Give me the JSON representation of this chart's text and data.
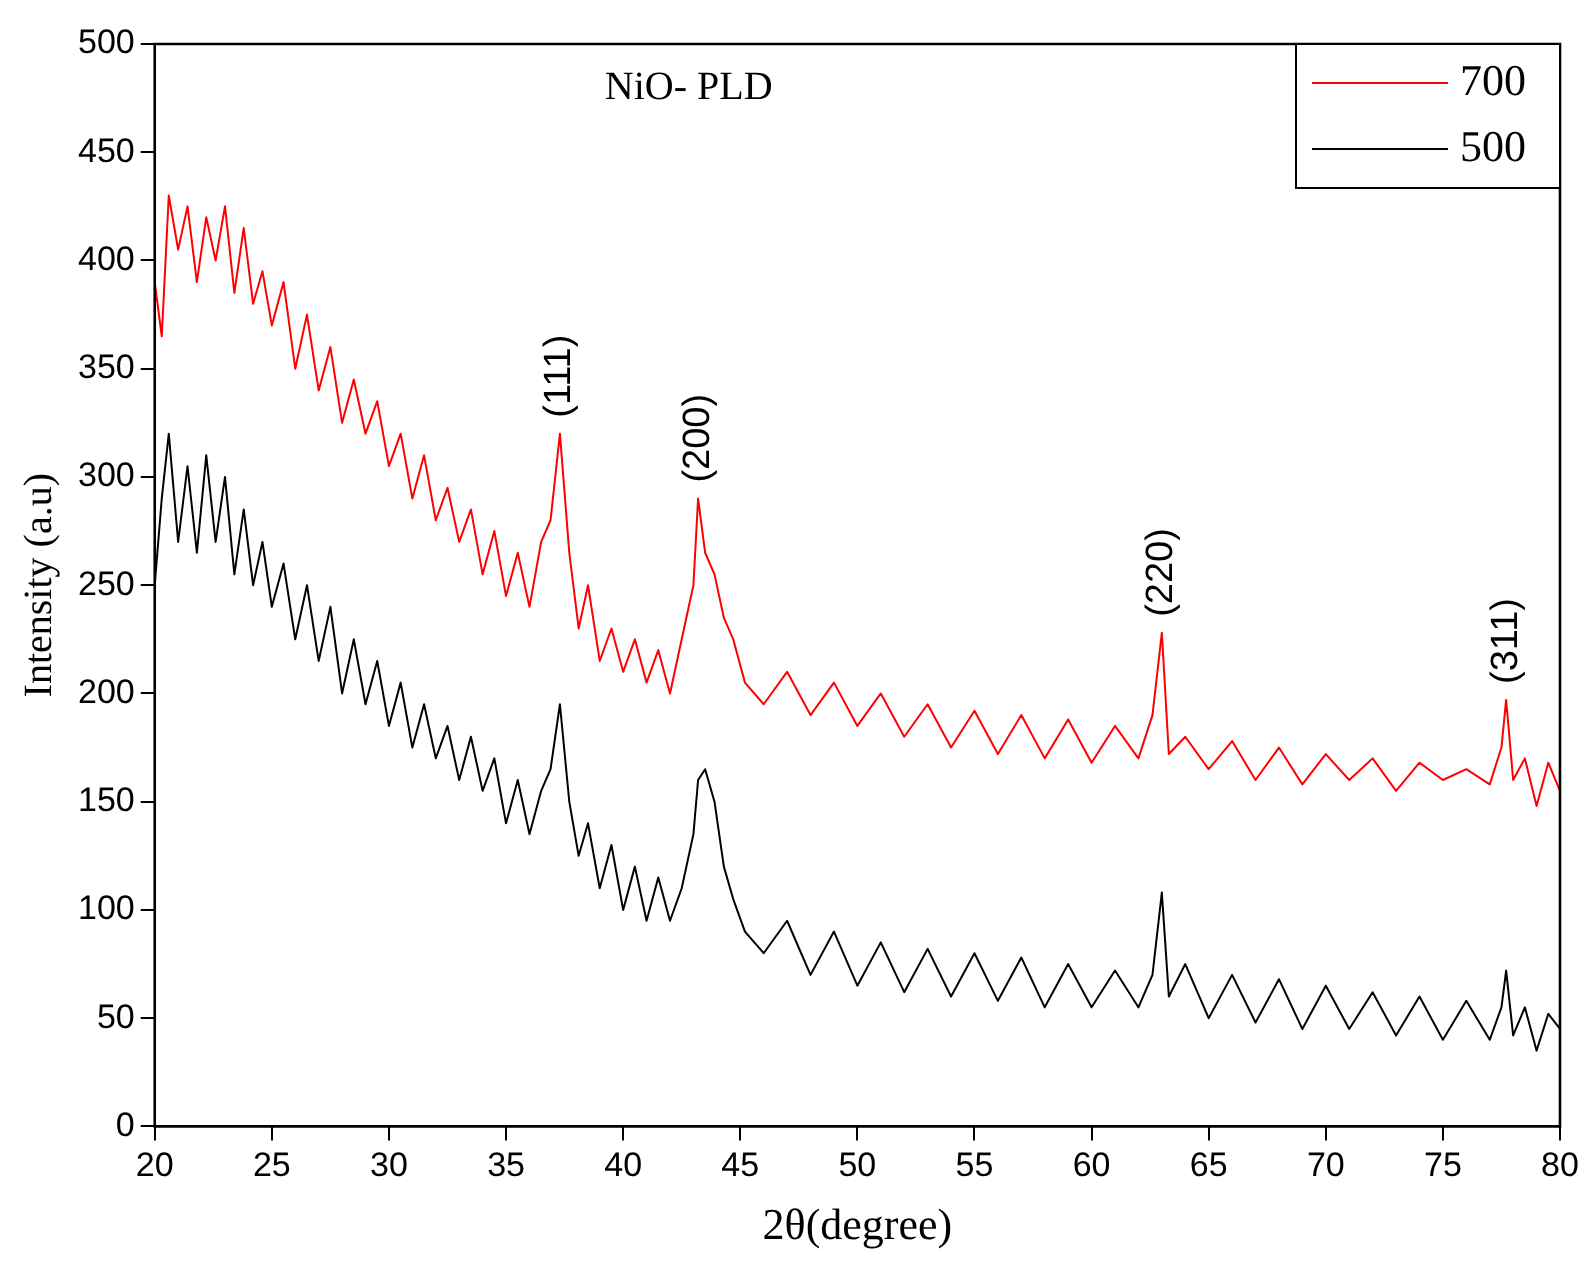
{
  "chart_data": {
    "type": "line",
    "title": "NiO- PLD",
    "xlabel": "2θ(degree)",
    "ylabel": "Intensity (a.u)",
    "xlim": [
      20,
      80
    ],
    "xticks": [
      20,
      25,
      30,
      35,
      40,
      45,
      50,
      55,
      60,
      65,
      70,
      75,
      80
    ],
    "ylim": [
      0,
      500
    ],
    "yticks": [
      0,
      50,
      100,
      150,
      200,
      250,
      300,
      350,
      400,
      450,
      500
    ],
    "legend": "top right",
    "grid": false,
    "marker": "none",
    "line_style": "solid",
    "series": [
      {
        "name": "700",
        "color": "#ff0000",
        "x": [
          20,
          20.3,
          20.6,
          21,
          21.4,
          21.8,
          22.2,
          22.6,
          23,
          23.4,
          23.8,
          24.2,
          24.6,
          25,
          25.5,
          26,
          26.5,
          27,
          27.5,
          28,
          28.5,
          29,
          29.5,
          30,
          30.5,
          31,
          31.5,
          32,
          32.5,
          33,
          33.5,
          34,
          34.5,
          35,
          35.5,
          36,
          36.5,
          36.9,
          37.3,
          37.7,
          38.1,
          38.5,
          39,
          39.5,
          40,
          40.5,
          41,
          41.5,
          42,
          42.5,
          43,
          43.2,
          43.5,
          43.9,
          44.3,
          44.7,
          45.2,
          46,
          47,
          48,
          49,
          50,
          51,
          52,
          53,
          54,
          55,
          56,
          57,
          58,
          59,
          60,
          61,
          62,
          62.6,
          63,
          63.3,
          64,
          65,
          66,
          67,
          68,
          69,
          70,
          71,
          72,
          73,
          74,
          75,
          76,
          77,
          77.5,
          77.7,
          78,
          78.5,
          79,
          79.5,
          80
        ],
        "values": [
          390,
          365,
          430,
          405,
          425,
          390,
          420,
          400,
          425,
          385,
          415,
          380,
          395,
          370,
          390,
          350,
          375,
          340,
          360,
          325,
          345,
          320,
          335,
          305,
          320,
          290,
          310,
          280,
          295,
          270,
          285,
          255,
          275,
          245,
          265,
          240,
          270,
          280,
          320,
          265,
          230,
          250,
          215,
          230,
          210,
          225,
          205,
          220,
          200,
          225,
          250,
          290,
          265,
          255,
          235,
          225,
          205,
          195,
          210,
          190,
          205,
          185,
          200,
          180,
          195,
          175,
          192,
          172,
          190,
          170,
          188,
          168,
          185,
          170,
          190,
          228,
          172,
          180,
          165,
          178,
          160,
          175,
          158,
          172,
          160,
          170,
          155,
          168,
          160,
          165,
          158,
          175,
          197,
          160,
          170,
          148,
          168,
          155
        ]
      },
      {
        "name": "500",
        "color": "#000000",
        "x": [
          20,
          20.3,
          20.6,
          21,
          21.4,
          21.8,
          22.2,
          22.6,
          23,
          23.4,
          23.8,
          24.2,
          24.6,
          25,
          25.5,
          26,
          26.5,
          27,
          27.5,
          28,
          28.5,
          29,
          29.5,
          30,
          30.5,
          31,
          31.5,
          32,
          32.5,
          33,
          33.5,
          34,
          34.5,
          35,
          35.5,
          36,
          36.5,
          36.9,
          37.3,
          37.7,
          38.1,
          38.5,
          39,
          39.5,
          40,
          40.5,
          41,
          41.5,
          42,
          42.5,
          43,
          43.2,
          43.5,
          43.9,
          44.3,
          44.7,
          45.2,
          46,
          47,
          48,
          49,
          50,
          51,
          52,
          53,
          54,
          55,
          56,
          57,
          58,
          59,
          60,
          61,
          62,
          62.6,
          63,
          63.3,
          64,
          65,
          66,
          67,
          68,
          69,
          70,
          71,
          72,
          73,
          74,
          75,
          76,
          77,
          77.5,
          77.7,
          78,
          78.5,
          79,
          79.5,
          80
        ],
        "values": [
          250,
          290,
          320,
          270,
          305,
          265,
          310,
          270,
          300,
          255,
          285,
          250,
          270,
          240,
          260,
          225,
          250,
          215,
          240,
          200,
          225,
          195,
          215,
          185,
          205,
          175,
          195,
          170,
          185,
          160,
          180,
          155,
          170,
          140,
          160,
          135,
          155,
          165,
          195,
          150,
          125,
          140,
          110,
          130,
          100,
          120,
          95,
          115,
          95,
          110,
          135,
          160,
          165,
          150,
          120,
          105,
          90,
          80,
          95,
          70,
          90,
          65,
          85,
          62,
          82,
          60,
          80,
          58,
          78,
          55,
          75,
          55,
          72,
          55,
          70,
          108,
          60,
          75,
          50,
          70,
          48,
          68,
          45,
          65,
          45,
          62,
          42,
          60,
          40,
          58,
          40,
          55,
          72,
          42,
          55,
          35,
          52,
          45
        ]
      }
    ],
    "annotations": [
      {
        "text": "(111)",
        "x": 37.3,
        "y": 320
      },
      {
        "text": "(200)",
        "x": 43.2,
        "y": 290
      },
      {
        "text": "(220)",
        "x": 63,
        "y": 228
      },
      {
        "text": "(311)",
        "x": 77.7,
        "y": 197
      }
    ]
  }
}
